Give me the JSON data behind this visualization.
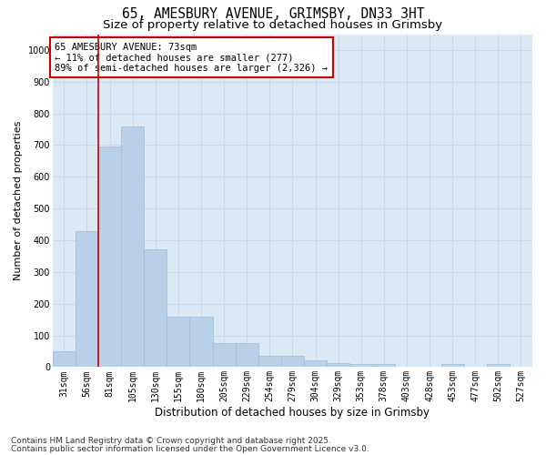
{
  "title1": "65, AMESBURY AVENUE, GRIMSBY, DN33 3HT",
  "title2": "Size of property relative to detached houses in Grimsby",
  "xlabel": "Distribution of detached houses by size in Grimsby",
  "ylabel": "Number of detached properties",
  "categories": [
    "31sqm",
    "56sqm",
    "81sqm",
    "105sqm",
    "130sqm",
    "155sqm",
    "180sqm",
    "205sqm",
    "229sqm",
    "254sqm",
    "279sqm",
    "304sqm",
    "329sqm",
    "353sqm",
    "378sqm",
    "403sqm",
    "428sqm",
    "453sqm",
    "477sqm",
    "502sqm",
    "527sqm"
  ],
  "values": [
    50,
    430,
    695,
    760,
    370,
    160,
    160,
    75,
    75,
    35,
    35,
    20,
    13,
    10,
    10,
    0,
    0,
    10,
    0,
    10,
    0
  ],
  "bar_color": "#b8d0e8",
  "bar_edge_color": "#a0bcd8",
  "grid_color": "#c8d8e8",
  "background_color": "#dce8f4",
  "vline_color": "#cc0000",
  "vline_pos": 1.5,
  "annotation_text": "65 AMESBURY AVENUE: 73sqm\n← 11% of detached houses are smaller (277)\n89% of semi-detached houses are larger (2,326) →",
  "annotation_box_facecolor": "#ffffff",
  "annotation_box_edgecolor": "#cc0000",
  "footer1": "Contains HM Land Registry data © Crown copyright and database right 2025.",
  "footer2": "Contains public sector information licensed under the Open Government Licence v3.0.",
  "ylim": [
    0,
    1050
  ],
  "yticks": [
    0,
    100,
    200,
    300,
    400,
    500,
    600,
    700,
    800,
    900,
    1000
  ],
  "title1_fontsize": 10.5,
  "title2_fontsize": 9.5,
  "xlabel_fontsize": 8.5,
  "ylabel_fontsize": 8,
  "tick_fontsize": 7,
  "annot_fontsize": 7.5,
  "footer_fontsize": 6.5
}
